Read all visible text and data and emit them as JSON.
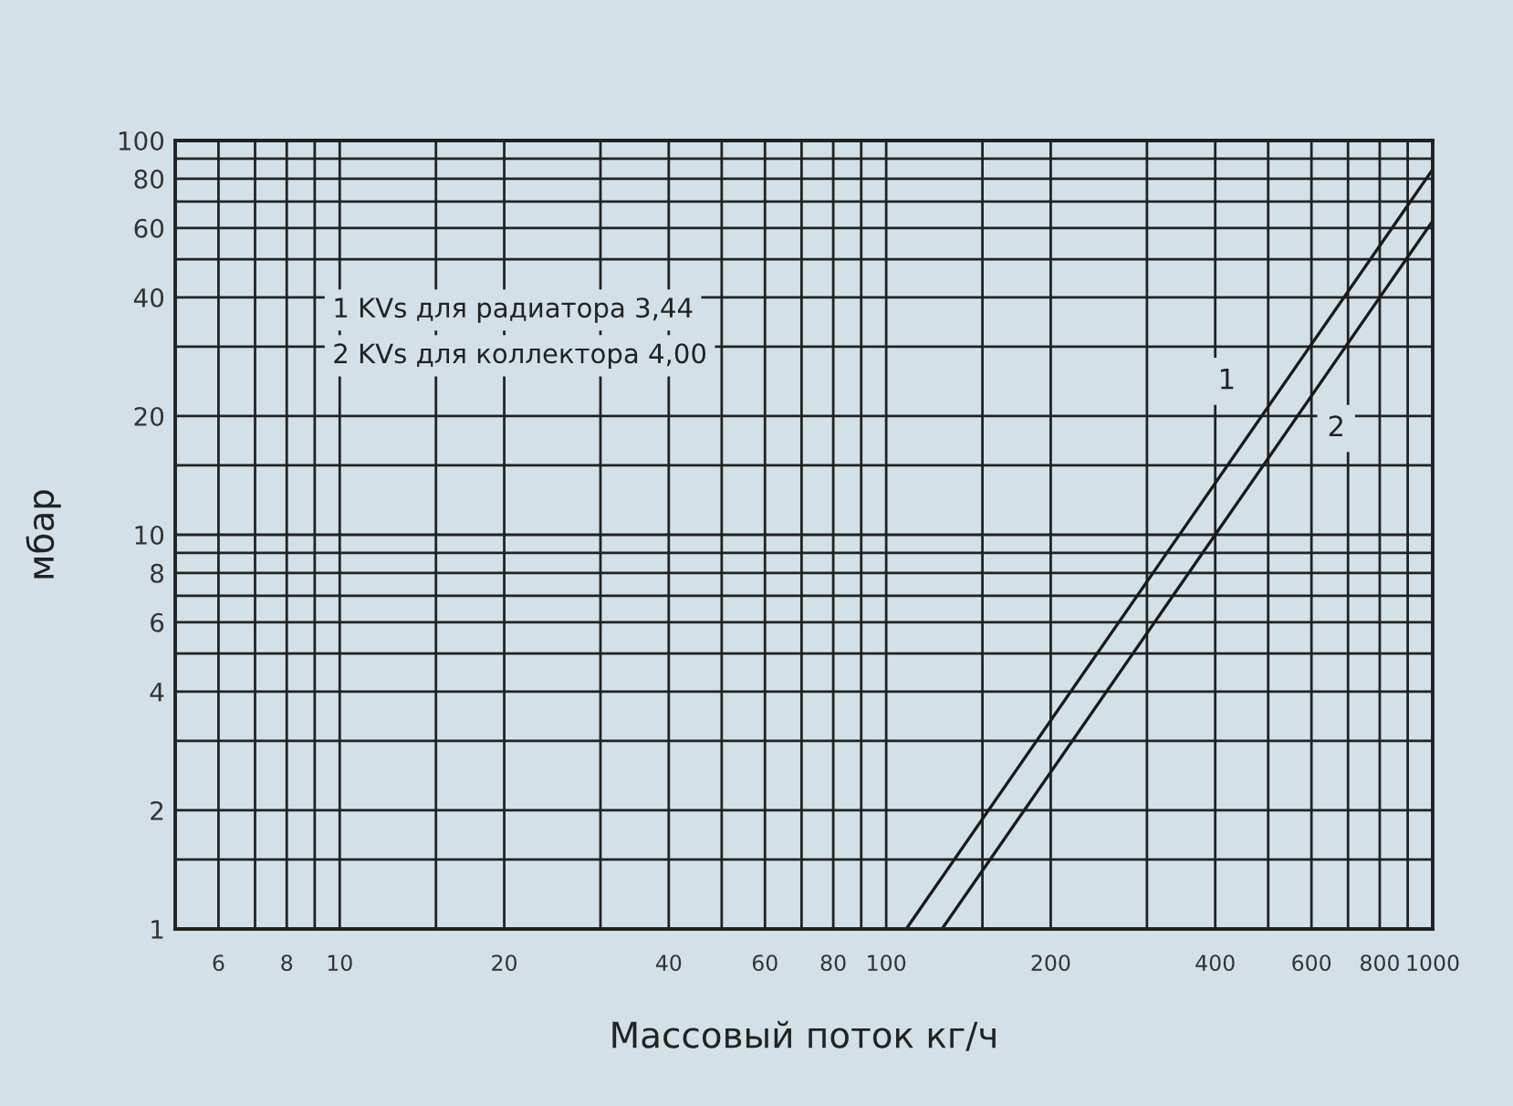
{
  "chart_data": {
    "type": "line",
    "xlabel": "Массовый поток кг/ч",
    "ylabel": "мбар",
    "log": "xy",
    "grid": true,
    "legend": false,
    "marker": "none",
    "line_style": "solid",
    "series": [
      {
        "color": "#1a1a1a",
        "x": [
          108.8,
          1000
        ],
        "values": [
          1,
          84.5
        ]
      },
      {
        "color": "#1a1a1a",
        "x": [
          126.5,
          1000
        ],
        "values": [
          1,
          62.5
        ]
      }
    ],
    "xlim": [
      5,
      1000
    ],
    "ylim": [
      1,
      100
    ],
    "xticks": [
      6,
      {
        "value": 7,
        "label": null
      },
      8,
      {
        "value": 9,
        "label": null
      },
      10,
      {
        "value": 15,
        "label": null
      },
      20,
      {
        "value": 30,
        "label": null
      },
      40,
      {
        "value": 50,
        "label": null
      },
      60,
      {
        "value": 70,
        "label": null
      },
      80,
      {
        "value": 90,
        "label": null
      },
      100,
      {
        "value": 150,
        "label": null
      },
      200,
      {
        "value": 300,
        "label": null
      },
      400,
      {
        "value": 500,
        "label": null
      },
      600,
      {
        "value": 700,
        "label": null
      },
      800,
      {
        "value": 900,
        "label": null
      },
      1000
    ],
    "yticks": [
      1,
      {
        "value": 1.5,
        "label": null
      },
      2,
      {
        "value": 3,
        "label": null
      },
      4,
      {
        "value": 5,
        "label": null
      },
      6,
      {
        "value": 7,
        "label": null
      },
      8,
      {
        "value": 9,
        "label": null
      },
      10,
      {
        "value": 15,
        "label": null
      },
      20,
      {
        "value": 30,
        "label": null
      },
      40,
      {
        "value": 50,
        "label": null
      },
      60,
      {
        "value": 70,
        "label": null
      },
      80,
      {
        "value": 90,
        "label": null
      },
      100
    ],
    "annotations": [
      "1 KVs для радиатора 3,44",
      "2 KVs для коллектора 4,00",
      {
        "text": "1",
        "x": 420,
        "y": 24.5
      },
      {
        "text": "2",
        "x": 666,
        "y": 18.6
      }
    ]
  }
}
